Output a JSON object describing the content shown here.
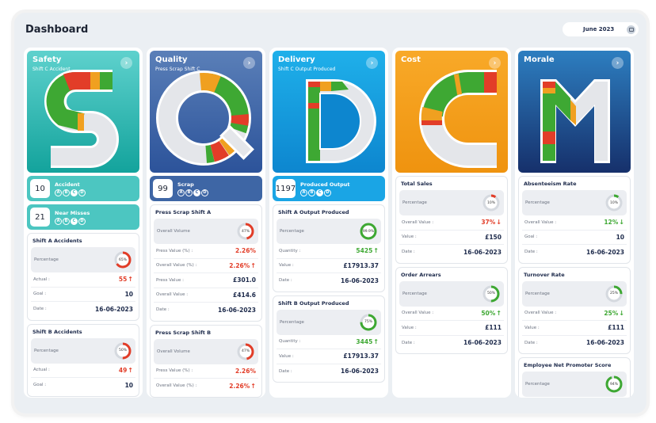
{
  "header": {
    "title": "Dashboard",
    "date": "June 2023",
    "calendar_icon": "calendar-icon"
  },
  "colors": {
    "safety": "#2ab3ad",
    "quality": "#3e66a5",
    "delivery": "#1399db",
    "cost": "#f29c1d",
    "morale": "#1b4c8a",
    "red": "#e23d28",
    "green": "#3ea833",
    "amber": "#f0a020"
  },
  "columns": [
    {
      "key": "safety",
      "title": "Safety",
      "subtitle": "Shift C Accident",
      "letter": "S",
      "summaries": [
        {
          "value": "10",
          "label": "Accident",
          "letters": [
            "A",
            "B",
            "C",
            "D"
          ],
          "active": "C"
        },
        {
          "value": "21",
          "label": "Near Misses",
          "letters": [
            "A",
            "B",
            "C",
            "D"
          ],
          "active": "C"
        }
      ],
      "cards": [
        {
          "title": "Shift A Accidents",
          "pct_label": "Percentage",
          "pct": 65,
          "pct_text": "65%",
          "pct_color": "red",
          "rows": [
            {
              "k": "Actual :",
              "v": "55",
              "color": "red",
              "arrow": "up"
            },
            {
              "k": "Goal :",
              "v": "10"
            },
            {
              "k": "Date :",
              "v": "16-06-2023"
            }
          ]
        },
        {
          "title": "Shift B Accidents",
          "pct_label": "Percentage",
          "pct": 50,
          "pct_text": "50%",
          "pct_color": "red",
          "rows": [
            {
              "k": "Actual :",
              "v": "49",
              "color": "red",
              "arrow": "up"
            },
            {
              "k": "Goal :",
              "v": "10"
            }
          ]
        }
      ]
    },
    {
      "key": "quality",
      "title": "Quality",
      "subtitle": "Press Scrap Shift C",
      "letter": "Q",
      "summaries": [
        {
          "value": "99",
          "label": "Scrap",
          "letters": [
            "A",
            "B",
            "C",
            "D"
          ],
          "active": "C"
        }
      ],
      "cards": [
        {
          "title": "Press Scrap Shift A",
          "pct_label": "Overall Volume",
          "pct": 47,
          "pct_text": "47%",
          "pct_color": "red",
          "rows": [
            {
              "k": "Press Value (%) :",
              "v": "2.26%",
              "color": "red"
            },
            {
              "k": "Overall Value (%) :",
              "v": "2.26%",
              "color": "red",
              "arrow": "up"
            },
            {
              "k": "Press Value :",
              "v": "£301.0"
            },
            {
              "k": "Overall Value :",
              "v": "£414.6"
            },
            {
              "k": "Date :",
              "v": "16-06-2023"
            }
          ]
        },
        {
          "title": "Press Scrap Shift B",
          "pct_label": "Overall Volume",
          "pct": 47,
          "pct_text": "47%",
          "pct_color": "red",
          "rows": [
            {
              "k": "Press Value (%) :",
              "v": "2.26%",
              "color": "red"
            },
            {
              "k": "Overall Value (%) :",
              "v": "2.26%",
              "color": "red",
              "arrow": "up"
            }
          ]
        }
      ]
    },
    {
      "key": "delivery",
      "title": "Delivery",
      "subtitle": "Shift C Output Produced",
      "letter": "D",
      "summaries": [
        {
          "value": "1197",
          "label": "Produced Output",
          "letters": [
            "A",
            "B",
            "C",
            "D"
          ],
          "active": "C"
        }
      ],
      "cards": [
        {
          "title": "Shift A Output Produced",
          "pct_label": "Percentage",
          "pct": 99.9,
          "pct_text": "99.9%",
          "pct_color": "green",
          "rows": [
            {
              "k": "Quantity :",
              "v": "5425",
              "color": "green",
              "arrow": "up"
            },
            {
              "k": "Value :",
              "v": "£17913.37"
            },
            {
              "k": "Date :",
              "v": "16-06-2023"
            }
          ]
        },
        {
          "title": "Shift B Output Produced",
          "pct_label": "Percentage",
          "pct": 75,
          "pct_text": "75%",
          "pct_color": "green",
          "rows": [
            {
              "k": "Quantity :",
              "v": "3445",
              "color": "green",
              "arrow": "up"
            },
            {
              "k": "Value :",
              "v": "£17913.37"
            },
            {
              "k": "Date :",
              "v": "16-06-2023"
            }
          ]
        }
      ]
    },
    {
      "key": "cost",
      "title": "Cost",
      "subtitle": "",
      "letter": "C",
      "summaries": [],
      "cards": [
        {
          "title": "Total Sales",
          "pct_label": "Percentage",
          "pct": 10,
          "pct_text": "10%",
          "pct_color": "red",
          "rows": [
            {
              "k": "Overall Value :",
              "v": "37%",
              "color": "red",
              "arrow": "down"
            },
            {
              "k": "Value :",
              "v": "£150"
            },
            {
              "k": "Date :",
              "v": "16-06-2023"
            }
          ]
        },
        {
          "title": "Order Arrears",
          "pct_label": "Percentage",
          "pct": 50,
          "pct_text": "50%",
          "pct_color": "green",
          "rows": [
            {
              "k": "Overall Value :",
              "v": "50%",
              "color": "green",
              "arrow": "up"
            },
            {
              "k": "Value :",
              "v": "£111"
            },
            {
              "k": "Date :",
              "v": "16-06-2023"
            }
          ]
        }
      ]
    },
    {
      "key": "morale",
      "title": "Morale",
      "subtitle": "",
      "letter": "M",
      "summaries": [],
      "cards": [
        {
          "title": "Absenteeism Rate",
          "pct_label": "Percentage",
          "pct": 10,
          "pct_text": "10%",
          "pct_color": "green",
          "rows": [
            {
              "k": "Overall Value :",
              "v": "12%",
              "color": "green",
              "arrow": "down"
            },
            {
              "k": "Goal :",
              "v": "10"
            },
            {
              "k": "Date :",
              "v": "16-06-2023"
            }
          ]
        },
        {
          "title": "Turnover Rate",
          "pct_label": "Percentage",
          "pct": 25,
          "pct_text": "25%",
          "pct_color": "green",
          "rows": [
            {
              "k": "Overall Value :",
              "v": "25%",
              "color": "green",
              "arrow": "down"
            },
            {
              "k": "Value :",
              "v": "£111"
            },
            {
              "k": "Date :",
              "v": "16-06-2023"
            }
          ]
        },
        {
          "title": "Employee Net Promoter Score",
          "pct_label": "Percentage",
          "pct": 94,
          "pct_text": "94%",
          "pct_color": "green",
          "rows": []
        }
      ]
    }
  ]
}
